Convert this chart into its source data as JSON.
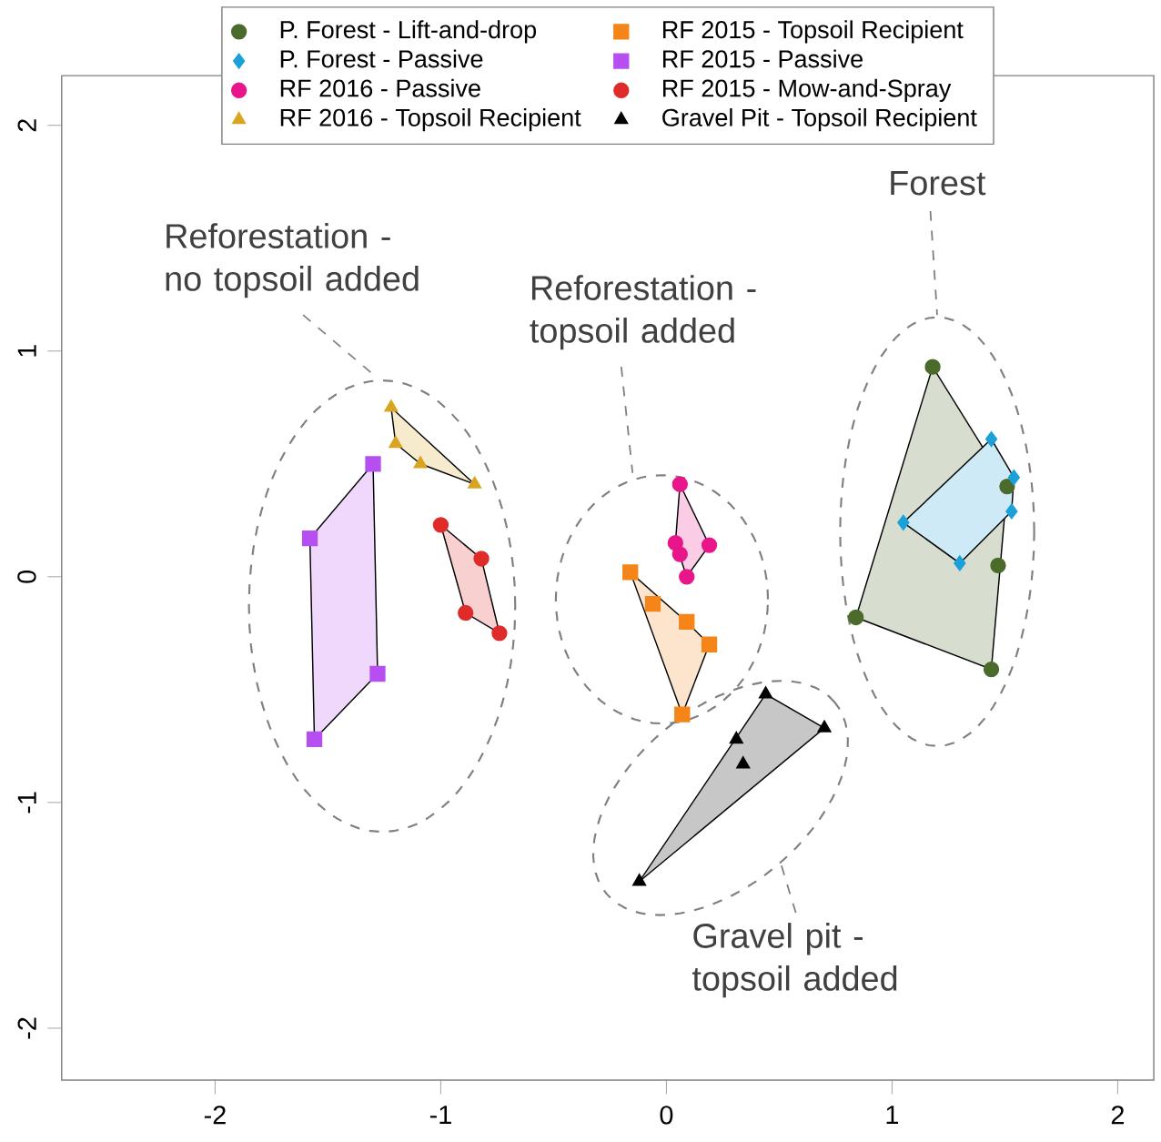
{
  "chart_data": {
    "type": "scatter",
    "xlim": [
      -2.68,
      2.16
    ],
    "ylim": [
      -2.23,
      2.22
    ],
    "xticks": [
      -2,
      -1,
      0,
      1,
      2
    ],
    "yticks": [
      -2,
      -1,
      0,
      1,
      2
    ],
    "legend": "top",
    "grid": false,
    "series": [
      {
        "name": "P. Forest - Lift-and-drop",
        "color": "#4a6b2a",
        "marker": "circle",
        "x": [
          1.18,
          1.51,
          1.47,
          0.84,
          1.44
        ],
        "values": [
          0.93,
          0.4,
          0.05,
          -0.18,
          -0.41
        ]
      },
      {
        "name": "P. Forest - Passive",
        "color": "#1ba1d8",
        "marker": "diamond",
        "x": [
          1.44,
          1.54,
          1.53,
          1.05,
          1.3
        ],
        "values": [
          0.61,
          0.44,
          0.29,
          0.24,
          0.06
        ]
      },
      {
        "name": "RF 2016 - Passive",
        "color": "#e8168a",
        "marker": "circle",
        "x": [
          0.06,
          0.04,
          0.06,
          0.19,
          0.09
        ],
        "values": [
          0.41,
          0.15,
          0.1,
          0.14,
          0.0
        ]
      },
      {
        "name": "RF 2016 - Topsoil Recipient",
        "color": "#d9a520",
        "marker": "triangle",
        "x": [
          -1.22,
          -1.2,
          -1.09,
          -0.85
        ],
        "values": [
          0.75,
          0.59,
          0.5,
          0.41
        ]
      },
      {
        "name": "RF 2015 - Topsoil Recipient",
        "color": "#f58518",
        "marker": "square",
        "x": [
          -0.16,
          -0.06,
          0.09,
          0.19,
          0.07
        ],
        "values": [
          0.02,
          -0.12,
          -0.2,
          -0.3,
          -0.61
        ]
      },
      {
        "name": "RF 2015 - Passive",
        "color": "#b64ff0",
        "marker": "square",
        "x": [
          -1.3,
          -1.58,
          -1.28,
          -1.56
        ],
        "values": [
          0.5,
          0.17,
          -0.43,
          -0.72
        ]
      },
      {
        "name": "RF 2015 - Mow-and-Spray",
        "color": "#e02b2b",
        "marker": "circle",
        "x": [
          -1.0,
          -0.82,
          -0.89,
          -0.74
        ],
        "values": [
          0.23,
          0.08,
          -0.16,
          -0.25
        ]
      },
      {
        "name": "Gravel Pit - Topsoil Recipient",
        "color": "#000000",
        "marker": "triangle",
        "x": [
          0.44,
          0.7,
          0.31,
          0.34,
          -0.12
        ],
        "values": [
          -0.52,
          -0.67,
          -0.72,
          -0.83,
          -1.35
        ]
      }
    ],
    "annotations": [
      "Reforestation - no topsoil added",
      "Reforestation - topsoil added",
      "Forest",
      "Gravel pit - topsoil added"
    ]
  }
}
